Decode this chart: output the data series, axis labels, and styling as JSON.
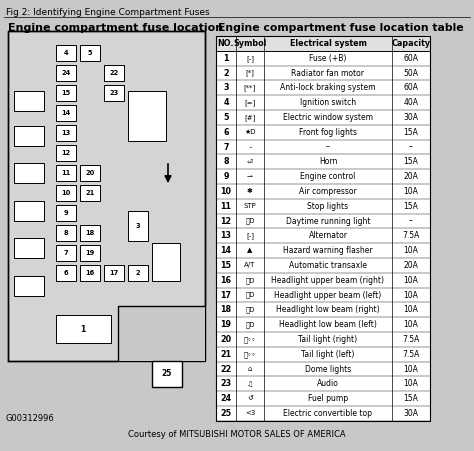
{
  "fig_title": "Fig 2: Identifying Engine Compartment Fuses",
  "left_title": "Engine compartment fuse location",
  "right_title": "Engine compartment fuse location table",
  "footer_code": "G00312996",
  "footer_courtesy": "Courtesy of MITSUBISHI MOTOR SALES OF AMERICA",
  "bg_color": "#c8c8c8",
  "table_headers": [
    "NO.",
    "Symbol",
    "Electrical system",
    "Capacity"
  ],
  "table_rows": [
    [
      "1",
      "[-]",
      "Fuse (+B)",
      "60A"
    ],
    [
      "2",
      "[*]",
      "Radiator fan motor",
      "50A"
    ],
    [
      "3",
      "[**]",
      "Anti-lock braking system",
      "60A"
    ],
    [
      "4",
      "[=]",
      "Ignition switch",
      "40A"
    ],
    [
      "5",
      "[#]",
      "Electric window system",
      "30A"
    ],
    [
      "6",
      "★D",
      "Front fog lights",
      "15A"
    ],
    [
      "7",
      "–",
      "–",
      "–"
    ],
    [
      "8",
      "⏎",
      "Horn",
      "15A"
    ],
    [
      "9",
      "⇀",
      "Engine control",
      "20A"
    ],
    [
      "10",
      "✱",
      "Air compressor",
      "10A"
    ],
    [
      "11",
      "STP",
      "Stop lights",
      "15A"
    ],
    [
      "12",
      "ⒷD",
      "Daytime running light",
      "–"
    ],
    [
      "13",
      "[-]",
      "Alternator",
      "7.5A"
    ],
    [
      "14",
      "▲",
      "Hazard warning flasher",
      "10A"
    ],
    [
      "15",
      "A/T",
      "Automatic transaxle",
      "20A"
    ],
    [
      "16",
      "ⒷD",
      "Headlight upper beam (right)",
      "10A"
    ],
    [
      "17",
      "ⒷD",
      "Headlight upper beam (left)",
      "10A"
    ],
    [
      "18",
      "ⒷD",
      "Headlight low beam (right)",
      "10A"
    ],
    [
      "19",
      "ⒷD",
      "Headlight low beam (left)",
      "10A"
    ],
    [
      "20",
      "Ⓑ◦◦",
      "Tail light (right)",
      "7.5A"
    ],
    [
      "21",
      "Ⓑ◦◦",
      "Tail light (left)",
      "7.5A"
    ],
    [
      "22",
      "⌂",
      "Dome lights",
      "10A"
    ],
    [
      "23",
      "♫",
      "Audio",
      "10A"
    ],
    [
      "24",
      "↺",
      "Fuel pump",
      "15A"
    ],
    [
      "25",
      "<3",
      "Electric convertible top",
      "30A"
    ]
  ]
}
